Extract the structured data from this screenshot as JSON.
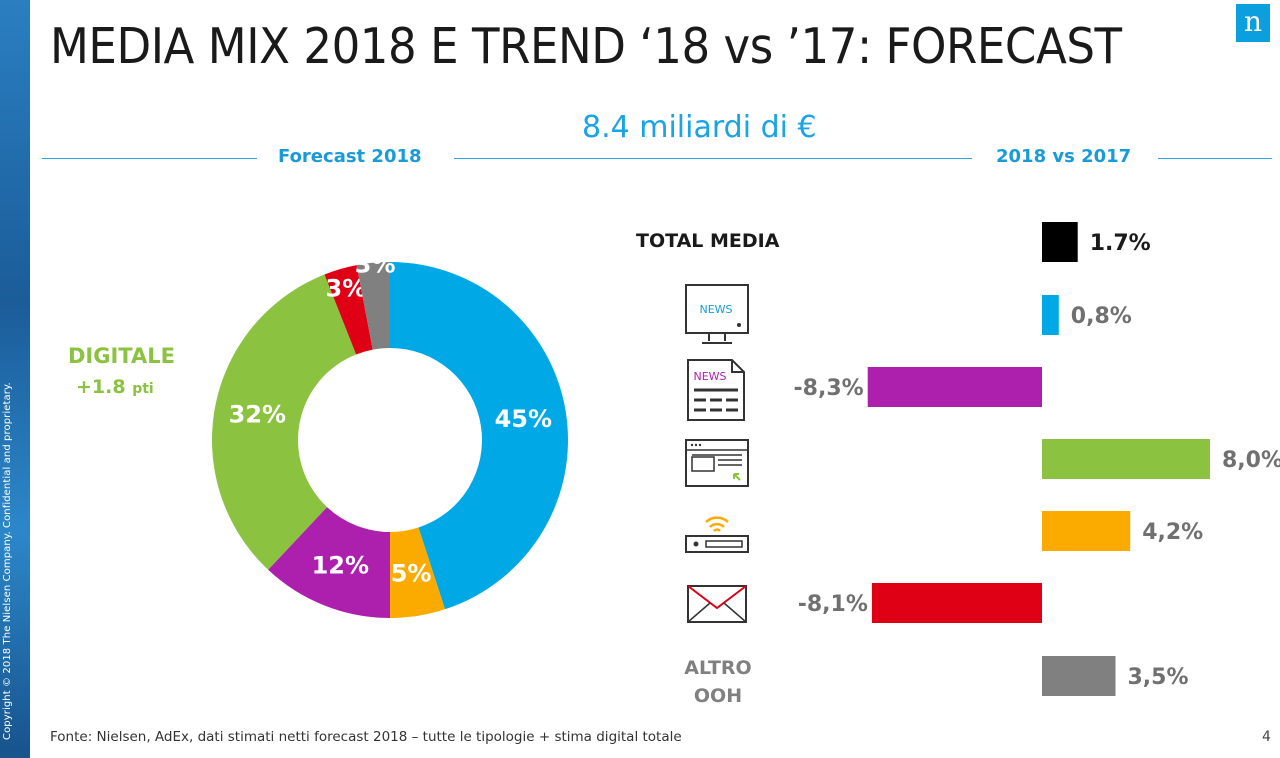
{
  "header": {
    "title": "MEDIA MIX 2018 E TREND ‘18 vs ’17: FORECAST",
    "logo": "n",
    "total_amount": "8.4 miliardi di €"
  },
  "sections": {
    "left": "Forecast 2018",
    "right": "2018 vs 2017"
  },
  "digital_callout": {
    "label": "DIGITALE",
    "delta_value": "+1.8",
    "delta_unit": "pti"
  },
  "labels": {
    "total_media": "TOTAL MEDIA",
    "altro_line1": "ALTRO",
    "altro_line2": "OOH"
  },
  "icons": {
    "tv": "tv-news-icon",
    "newspaper": "newspaper-icon",
    "web": "web-browser-icon",
    "radio": "radio-icon",
    "direct_mail": "envelope-icon",
    "tv_text": "NEWS",
    "newspaper_text": "NEWS"
  },
  "chart_data": [
    {
      "type": "pie",
      "variant": "donut",
      "slices": [
        {
          "value": 45,
          "label": "45%",
          "color": "#00a9e6"
        },
        {
          "value": 5,
          "label": "5%",
          "color": "#fbaa00"
        },
        {
          "value": 12,
          "label": "12%",
          "color": "#ad1fad"
        },
        {
          "value": 32,
          "label": "32%",
          "color": "#8bc240"
        },
        {
          "value": 3,
          "label": "3%",
          "color": "#e00016"
        },
        {
          "value": 3,
          "label": "3%",
          "color": "#808080"
        }
      ]
    },
    {
      "type": "bar",
      "orientation": "horizontal",
      "categories": [
        "TOTAL MEDIA",
        "TV",
        "Stampa",
        "Digitale",
        "Radio",
        "Direct mail",
        "ALTRO OOH"
      ],
      "values": [
        1.7,
        0.8,
        -8.3,
        8.0,
        4.2,
        -8.1,
        3.5
      ],
      "labels": [
        "1.7%",
        "0,8%",
        "-8,3%",
        "8,0%",
        "4,2%",
        "-8,1%",
        "3,5%"
      ],
      "colors": [
        "#000000",
        "#00a9e6",
        "#ad1fad",
        "#8bc240",
        "#fbaa00",
        "#e00016",
        "#808080"
      ],
      "label_colors": [
        "#1a1a1a",
        "#707070",
        "#707070",
        "#707070",
        "#707070",
        "#707070",
        "#707070"
      ],
      "xlim": [
        -8.3,
        8.0
      ]
    }
  ],
  "footer": {
    "source": "Fonte: Nielsen, AdEx, dati stimati netti forecast 2018 – tutte le tipologie + stima digital totale",
    "page": "4",
    "copyright": "Copyright © 2018 The Nielsen Company. Confidential and proprietary."
  }
}
